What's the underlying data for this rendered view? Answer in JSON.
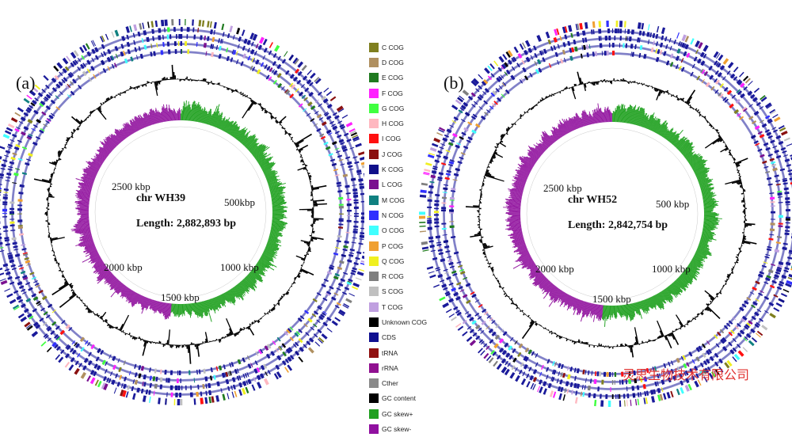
{
  "panels": [
    {
      "letter": "(a)",
      "chr_label": "chr  WH39",
      "length_label": "Length: 2,882,893 bp",
      "ticks": [
        "500kbp",
        "1000 kbp",
        "1500 kbp",
        "2000 kbp",
        "2500 kbp"
      ]
    },
    {
      "letter": "(b)",
      "chr_label": "chr  WH52",
      "length_label": "Length: 2,842,754 bp",
      "ticks": [
        "500 kbp",
        "1000 kbp",
        "1500 kbp",
        "2000 kbp",
        "2500 kbp"
      ]
    }
  ],
  "legend": [
    {
      "label": "C COG",
      "color": "#7f7f1f"
    },
    {
      "label": "D COG",
      "color": "#b09060"
    },
    {
      "label": "E COG",
      "color": "#1f7a1f"
    },
    {
      "label": "F COG",
      "color": "#ff20ff"
    },
    {
      "label": "G COG",
      "color": "#40ff40"
    },
    {
      "label": "H COG",
      "color": "#ffb8c0"
    },
    {
      "label": "I COG",
      "color": "#ff1010"
    },
    {
      "label": "J COG",
      "color": "#8a1010"
    },
    {
      "label": "K COG",
      "color": "#10108a"
    },
    {
      "label": "L COG",
      "color": "#7a1090"
    },
    {
      "label": "M COG",
      "color": "#108080"
    },
    {
      "label": "N COG",
      "color": "#3030ff"
    },
    {
      "label": "O COG",
      "color": "#40ffff"
    },
    {
      "label": "P COG",
      "color": "#f0a030"
    },
    {
      "label": "Q COG",
      "color": "#f0f020"
    },
    {
      "label": "R COG",
      "color": "#7f7f7f"
    },
    {
      "label": "S COG",
      "color": "#c0c0c0"
    },
    {
      "label": "T COG",
      "color": "#c0a0e0"
    },
    {
      "label": "Unknown COG",
      "color": "#000000"
    },
    {
      "label": "CDS",
      "color": "#101090"
    },
    {
      "label": "tRNA",
      "color": "#901010"
    },
    {
      "label": "rRNA",
      "color": "#901090"
    },
    {
      "label": "Cther",
      "color": "#8a8a8a"
    },
    {
      "label": "GC content",
      "color": "#000000"
    },
    {
      "label": "GC skew+",
      "color": "#20a020"
    },
    {
      "label": "GC skew-",
      "color": "#9010a0"
    }
  ],
  "watermark": "灵思生物技术有限公司"
}
